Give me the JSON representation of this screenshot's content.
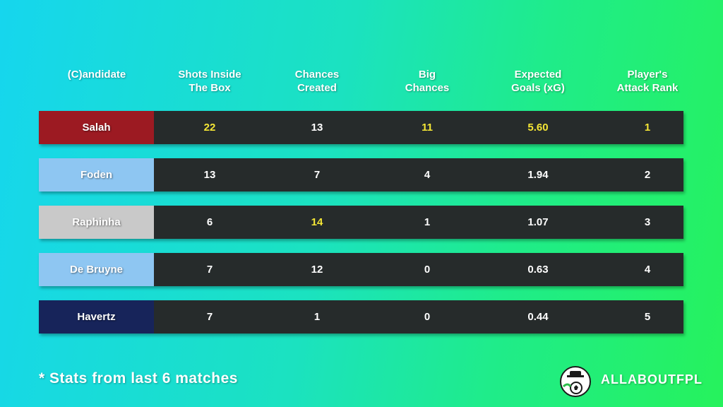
{
  "table": {
    "header": [
      "(C)andidate",
      "Shots Inside\nThe Box",
      "Chances\nCreated",
      "Big\nChances",
      "Expected\nGoals (xG)",
      "Player's\nAttack Rank"
    ],
    "rows": [
      [
        "Salah",
        "22",
        "13",
        "11",
        "5.60",
        "1"
      ],
      [
        "Foden",
        "13",
        "7",
        "4",
        "1.94",
        "2"
      ],
      [
        "Raphinha",
        "6",
        "14",
        "1",
        "1.07",
        "3"
      ],
      [
        "De Bruyne",
        "7",
        "12",
        "0",
        "0.63",
        "4"
      ],
      [
        "Havertz",
        "7",
        "1",
        "0",
        "0.44",
        "5"
      ]
    ]
  },
  "footnote": "* Stats from last 6 matches",
  "brand": "ALLABOUTFPL"
}
